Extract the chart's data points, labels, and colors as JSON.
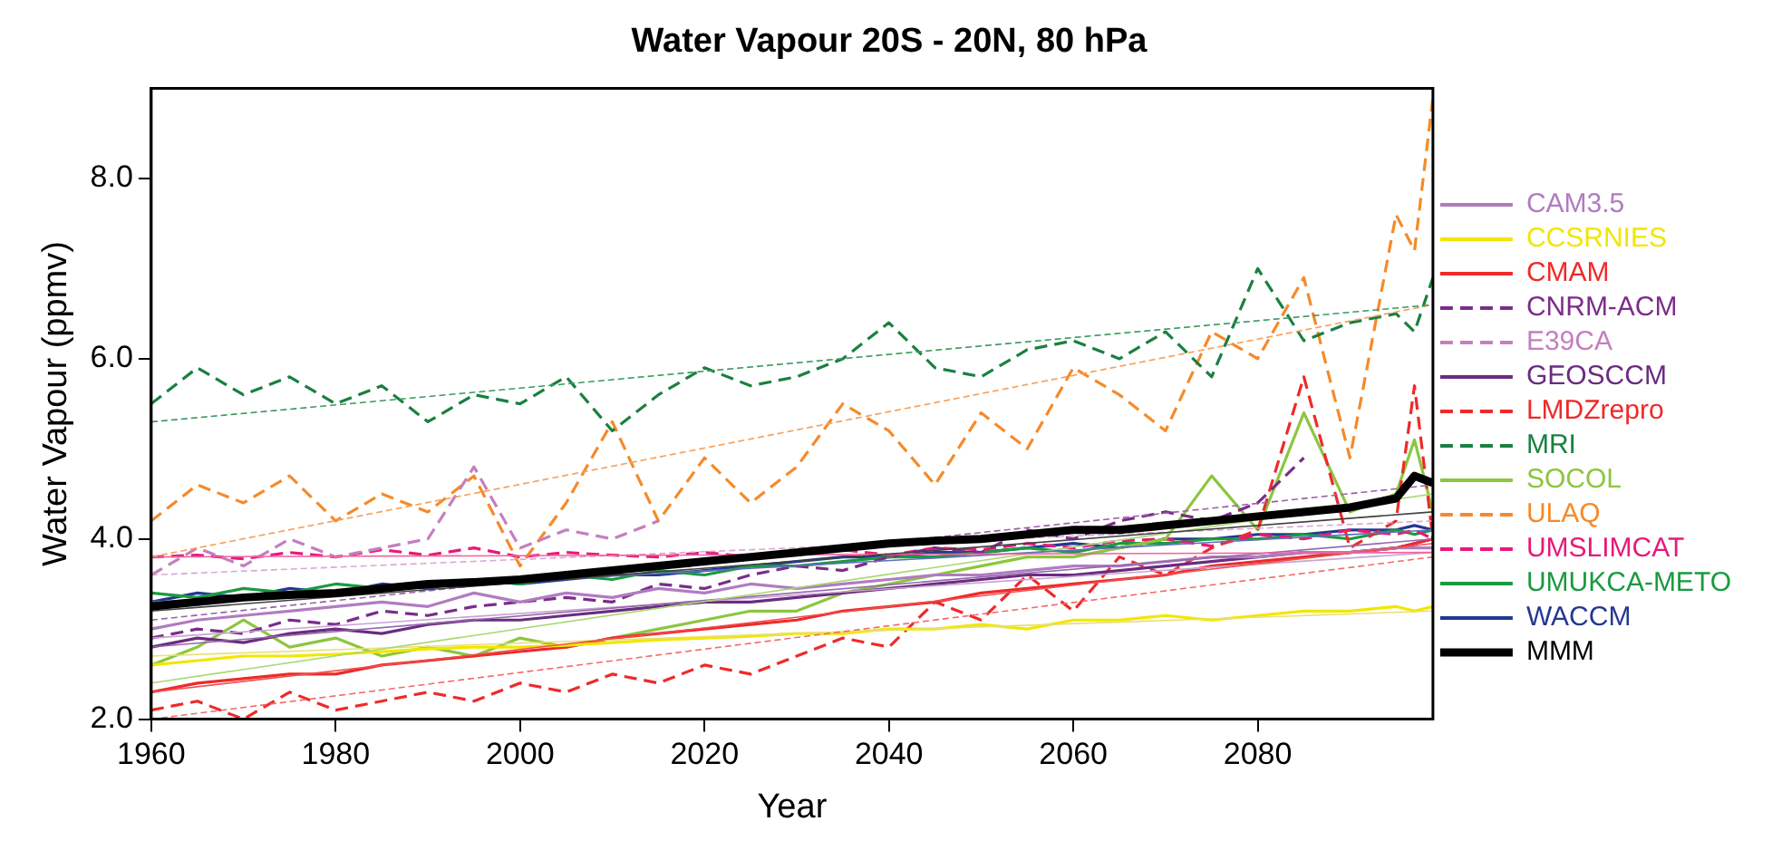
{
  "chart_data": {
    "type": "line",
    "title": "Water Vapour 20S - 20N, 80 hPa",
    "xlabel": "Year",
    "ylabel": "Water Vapour (ppmv)",
    "x": [
      1960,
      1965,
      1970,
      1975,
      1980,
      1985,
      1990,
      1995,
      2000,
      2005,
      2010,
      2015,
      2020,
      2025,
      2030,
      2035,
      2040,
      2045,
      2050,
      2055,
      2060,
      2065,
      2070,
      2075,
      2080,
      2085,
      2090,
      2095,
      2097,
      2099
    ],
    "xlim": [
      1960,
      2099
    ],
    "xticks": [
      1960,
      1980,
      2000,
      2020,
      2040,
      2060,
      2080
    ],
    "ylim": [
      2,
      9
    ],
    "yticks": [
      {
        "value": 2,
        "label": "2.0"
      },
      {
        "value": 4,
        "label": "4.0"
      },
      {
        "value": 6,
        "label": "6.0"
      },
      {
        "value": 8,
        "label": "8.0"
      }
    ],
    "grid": false,
    "legend": "right",
    "marker": "none",
    "series": [
      {
        "color": "#3a9a60",
        "line_style": "dashed",
        "values": [
          5.3,
          null,
          null,
          null,
          null,
          null,
          null,
          null,
          null,
          null,
          null,
          null,
          null,
          null,
          null,
          null,
          null,
          null,
          null,
          null,
          null,
          null,
          null,
          null,
          null,
          null,
          null,
          null,
          null,
          6.6
        ]
      },
      {
        "color": "#f7a05a",
        "line_style": "dashed",
        "values": [
          3.8,
          null,
          null,
          null,
          null,
          null,
          null,
          null,
          null,
          null,
          null,
          null,
          null,
          null,
          null,
          null,
          null,
          null,
          null,
          null,
          null,
          null,
          null,
          null,
          null,
          null,
          null,
          null,
          null,
          6.6
        ]
      },
      {
        "color": "#404040",
        "line_style": "solid",
        "values": [
          3.2,
          null,
          null,
          null,
          null,
          null,
          null,
          null,
          null,
          null,
          null,
          null,
          null,
          null,
          null,
          null,
          null,
          null,
          null,
          null,
          null,
          null,
          null,
          null,
          null,
          null,
          null,
          null,
          null,
          4.3
        ]
      },
      {
        "color": "#f064a0",
        "line_style": "solid",
        "values": [
          3.8,
          null,
          null,
          null,
          null,
          null,
          null,
          null,
          null,
          null,
          null,
          null,
          null,
          null,
          null,
          null,
          null,
          null,
          null,
          null,
          null,
          null,
          null,
          null,
          null,
          null,
          null,
          null,
          null,
          3.85
        ]
      },
      {
        "color": "#6070b8",
        "line_style": "solid",
        "values": [
          3.3,
          null,
          null,
          null,
          null,
          null,
          null,
          null,
          null,
          null,
          null,
          null,
          null,
          null,
          null,
          null,
          null,
          null,
          null,
          null,
          null,
          null,
          null,
          null,
          null,
          null,
          null,
          null,
          null,
          4.1
        ]
      },
      {
        "color": "#9a60a8",
        "line_style": "dashed",
        "values": [
          3.1,
          null,
          null,
          null,
          null,
          null,
          null,
          null,
          null,
          null,
          null,
          null,
          null,
          null,
          null,
          null,
          null,
          null,
          null,
          null,
          null,
          null,
          null,
          null,
          null,
          null,
          null,
          null,
          null,
          4.6
        ]
      },
      {
        "color": "#d8a8d4",
        "line_style": "dashed",
        "values": [
          3.6,
          null,
          null,
          null,
          null,
          null,
          null,
          null,
          null,
          null,
          null,
          null,
          null,
          null,
          null,
          null,
          null,
          null,
          null,
          null,
          null,
          null,
          null,
          null,
          null,
          null,
          null,
          null,
          null,
          4.2
        ]
      },
      {
        "color": "#f46a6a",
        "line_style": "dashed",
        "values": [
          2.0,
          null,
          null,
          null,
          null,
          null,
          null,
          null,
          null,
          null,
          null,
          null,
          null,
          null,
          null,
          null,
          null,
          null,
          null,
          null,
          null,
          null,
          null,
          null,
          null,
          null,
          null,
          null,
          null,
          3.8
        ]
      },
      {
        "color": "#a8d870",
        "line_style": "solid",
        "values": [
          2.4,
          null,
          null,
          null,
          null,
          null,
          null,
          null,
          null,
          null,
          null,
          null,
          null,
          null,
          null,
          null,
          null,
          null,
          null,
          null,
          null,
          null,
          null,
          null,
          null,
          null,
          null,
          null,
          null,
          4.5
        ]
      },
      {
        "color": "#f05050",
        "line_style": "solid",
        "values": [
          2.3,
          null,
          null,
          null,
          null,
          null,
          null,
          null,
          null,
          null,
          null,
          null,
          null,
          null,
          null,
          null,
          null,
          null,
          null,
          null,
          null,
          null,
          null,
          null,
          null,
          null,
          null,
          null,
          null,
          3.95
        ]
      },
      {
        "color": "#e8e070",
        "line_style": "solid",
        "values": [
          2.7,
          null,
          null,
          null,
          null,
          null,
          null,
          null,
          null,
          null,
          null,
          null,
          null,
          null,
          null,
          null,
          null,
          null,
          null,
          null,
          null,
          null,
          null,
          null,
          null,
          null,
          null,
          null,
          null,
          3.2
        ]
      },
      {
        "color": "#9468aa",
        "line_style": "solid",
        "values": [
          2.8,
          null,
          null,
          null,
          null,
          null,
          null,
          null,
          null,
          null,
          null,
          null,
          null,
          null,
          null,
          null,
          null,
          null,
          null,
          null,
          null,
          null,
          null,
          null,
          null,
          null,
          null,
          null,
          null,
          4.0
        ]
      },
      {
        "color": "#c8a4d4",
        "line_style": "solid",
        "values": [
          2.9,
          null,
          null,
          null,
          null,
          null,
          null,
          null,
          null,
          null,
          null,
          null,
          null,
          null,
          null,
          null,
          null,
          null,
          null,
          null,
          null,
          null,
          null,
          null,
          null,
          null,
          null,
          null,
          null,
          3.85
        ]
      },
      {
        "name": "CAM3.5",
        "color": "#b07cc0",
        "line_style": "solid",
        "values": [
          3.0,
          3.1,
          3.15,
          3.2,
          3.25,
          3.3,
          3.25,
          3.4,
          3.3,
          3.4,
          3.35,
          3.45,
          3.4,
          3.5,
          3.45,
          3.5,
          3.55,
          3.6,
          3.6,
          3.65,
          3.7,
          3.7,
          3.75,
          3.8,
          3.8,
          3.85,
          3.85,
          3.9,
          3.9,
          3.9
        ]
      },
      {
        "name": "CCSRNIES",
        "color": "#f2e600",
        "line_style": "solid",
        "values": [
          2.6,
          2.65,
          2.7,
          2.7,
          2.72,
          2.75,
          2.78,
          2.8,
          2.8,
          2.82,
          2.85,
          2.88,
          2.9,
          2.92,
          2.95,
          2.95,
          3.0,
          3.0,
          3.05,
          3.0,
          3.1,
          3.1,
          3.15,
          3.1,
          3.15,
          3.2,
          3.2,
          3.25,
          3.2,
          3.25
        ]
      },
      {
        "name": "CMAM",
        "color": "#ee2a2a",
        "line_style": "solid",
        "values": [
          2.3,
          2.4,
          2.45,
          2.5,
          2.5,
          2.6,
          2.65,
          2.7,
          2.75,
          2.8,
          2.9,
          2.95,
          3.0,
          3.05,
          3.1,
          3.2,
          3.25,
          3.3,
          3.4,
          3.45,
          3.5,
          3.55,
          3.6,
          3.7,
          3.75,
          3.8,
          3.85,
          3.9,
          3.95,
          4.0
        ]
      },
      {
        "name": "CNRM-ACM",
        "color": "#7b2c8a",
        "line_style": "dashed",
        "values": [
          2.9,
          3.0,
          2.95,
          3.1,
          3.05,
          3.2,
          3.15,
          3.25,
          3.3,
          3.35,
          3.3,
          3.5,
          3.45,
          3.6,
          3.7,
          3.65,
          3.8,
          3.9,
          3.85,
          4.1,
          4.0,
          4.2,
          4.3,
          4.2,
          4.4,
          4.9,
          null,
          null,
          null,
          null
        ]
      },
      {
        "name": "E39CA",
        "color": "#c47fbf",
        "line_style": "dashed",
        "values": [
          3.6,
          3.9,
          3.7,
          4.0,
          3.8,
          3.9,
          4.0,
          4.8,
          3.9,
          4.1,
          4.0,
          4.2,
          null,
          null,
          null,
          null,
          null,
          null,
          null,
          null,
          null,
          null,
          null,
          null,
          null,
          null,
          null,
          null,
          null,
          null
        ]
      },
      {
        "name": "GEOSCCM",
        "color": "#6a2c80",
        "line_style": "solid",
        "values": [
          2.8,
          2.9,
          2.85,
          2.95,
          3.0,
          2.95,
          3.05,
          3.1,
          3.1,
          3.15,
          3.2,
          3.25,
          3.3,
          3.3,
          3.35,
          3.4,
          3.45,
          3.5,
          3.55,
          3.6,
          3.6,
          3.65,
          3.7,
          3.75,
          3.8,
          3.85,
          3.85,
          3.9,
          3.95,
          4.0
        ]
      },
      {
        "name": "LMDZrepro",
        "color": "#ee2a2a",
        "line_style": "dashed",
        "values": [
          2.1,
          2.2,
          2.0,
          2.3,
          2.1,
          2.2,
          2.3,
          2.2,
          2.4,
          2.3,
          2.5,
          2.4,
          2.6,
          2.5,
          2.7,
          2.9,
          2.8,
          3.3,
          3.1,
          3.6,
          3.2,
          3.8,
          3.6,
          3.9,
          4.1,
          5.8,
          3.9,
          4.2,
          5.7,
          4.0
        ]
      },
      {
        "name": "MRI",
        "color": "#1a8040",
        "line_style": "dashed",
        "values": [
          5.5,
          5.9,
          5.6,
          5.8,
          5.5,
          5.7,
          5.3,
          5.6,
          5.5,
          5.8,
          5.2,
          5.6,
          5.9,
          5.7,
          5.8,
          6.0,
          6.4,
          5.9,
          5.8,
          6.1,
          6.2,
          6.0,
          6.3,
          5.8,
          7.0,
          6.2,
          6.4,
          6.5,
          6.3,
          6.9
        ]
      },
      {
        "name": "SOCOL",
        "color": "#8cc63f",
        "line_style": "solid",
        "values": [
          2.6,
          2.8,
          3.1,
          2.8,
          2.9,
          2.7,
          2.8,
          2.7,
          2.9,
          2.8,
          2.9,
          3.0,
          3.1,
          3.2,
          3.2,
          3.4,
          3.5,
          3.6,
          3.7,
          3.8,
          3.8,
          3.9,
          4.0,
          4.7,
          4.1,
          5.4,
          4.3,
          4.5,
          5.1,
          4.3
        ]
      },
      {
        "name": "ULAQ",
        "color": "#f58a2a",
        "line_style": "dashed",
        "values": [
          4.2,
          4.6,
          4.4,
          4.7,
          4.2,
          4.5,
          4.3,
          4.7,
          3.7,
          4.4,
          5.3,
          4.2,
          4.9,
          4.4,
          4.8,
          5.5,
          5.2,
          4.6,
          5.4,
          5.0,
          5.9,
          5.6,
          5.2,
          6.3,
          6.0,
          6.9,
          4.9,
          7.6,
          7.2,
          8.9
        ]
      },
      {
        "name": "UMSLIMCAT",
        "color": "#e8197a",
        "line_style": "dashed",
        "values": [
          3.8,
          3.82,
          3.78,
          3.85,
          3.8,
          3.88,
          3.82,
          3.9,
          3.8,
          3.85,
          3.82,
          3.8,
          3.85,
          3.8,
          3.85,
          3.88,
          3.82,
          3.9,
          3.88,
          3.95,
          3.9,
          3.98,
          4.0,
          3.92,
          4.05,
          4.0,
          4.1,
          4.05,
          4.1,
          4.0
        ]
      },
      {
        "name": "UMUKCA-METO",
        "color": "#1a9a40",
        "line_style": "solid",
        "values": [
          3.4,
          3.35,
          3.45,
          3.4,
          3.5,
          3.45,
          3.5,
          3.55,
          3.5,
          3.6,
          3.55,
          3.65,
          3.6,
          3.7,
          3.7,
          3.75,
          3.8,
          3.8,
          3.85,
          3.9,
          3.85,
          3.95,
          3.95,
          4.0,
          4.0,
          4.05,
          4.0,
          4.1,
          4.05,
          4.1
        ]
      },
      {
        "name": "WACCM",
        "color": "#23388f",
        "line_style": "solid",
        "values": [
          3.3,
          3.4,
          3.35,
          3.45,
          3.4,
          3.5,
          3.45,
          3.55,
          3.5,
          3.55,
          3.6,
          3.6,
          3.65,
          3.7,
          3.75,
          3.8,
          3.8,
          3.85,
          3.85,
          3.9,
          3.95,
          3.9,
          4.0,
          4.0,
          4.05,
          4.05,
          4.1,
          4.1,
          4.15,
          4.1
        ]
      },
      {
        "name": "MMM",
        "color": "#000000",
        "line_style": "solid",
        "values": [
          3.25,
          3.3,
          3.35,
          3.38,
          3.4,
          3.45,
          3.5,
          3.52,
          3.55,
          3.6,
          3.65,
          3.7,
          3.75,
          3.8,
          3.85,
          3.9,
          3.95,
          3.98,
          4.0,
          4.05,
          4.1,
          4.1,
          4.15,
          4.2,
          4.25,
          4.3,
          4.35,
          4.45,
          4.7,
          4.62
        ]
      }
    ]
  }
}
